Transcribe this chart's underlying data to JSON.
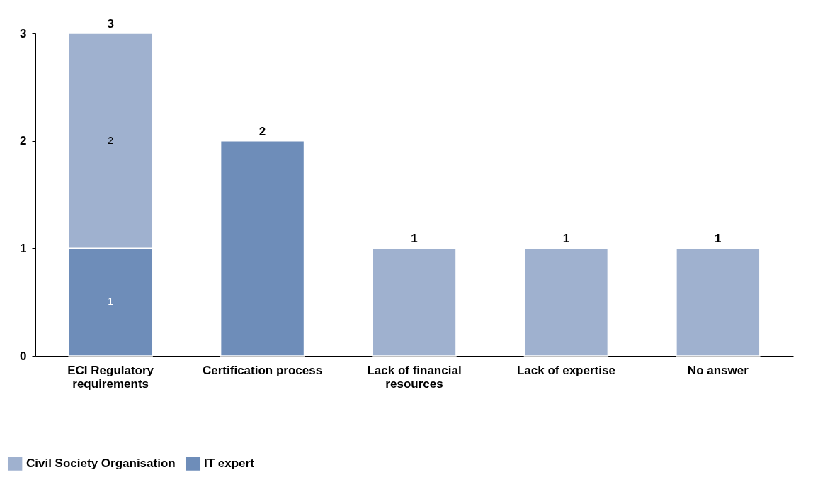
{
  "chart_data": {
    "type": "bar",
    "stacked": true,
    "categories": [
      "ECI Regulatory requirements",
      "Certification process",
      "Lack of financial resources",
      "Lack of expertise",
      "No answer"
    ],
    "series": [
      {
        "name": "IT expert",
        "color": "#6e8db9",
        "values": [
          1,
          2,
          null,
          null,
          null
        ],
        "value_labels": [
          "1",
          null,
          null,
          null,
          null
        ]
      },
      {
        "name": "Civil Society Organisation",
        "color": "#9fb1cf",
        "values": [
          2,
          null,
          1,
          1,
          1
        ],
        "value_labels": [
          "2",
          null,
          null,
          null,
          null
        ]
      }
    ],
    "totals": [
      "3",
      "2",
      "1",
      "1",
      "1"
    ],
    "ylim": [
      0,
      3
    ],
    "yticks": [
      0,
      1,
      2,
      3
    ],
    "grid": false,
    "legend": "bottom left"
  }
}
